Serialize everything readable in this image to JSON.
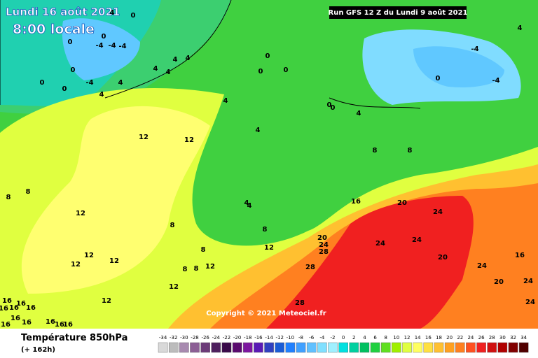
{
  "header": {
    "date": "Lundi 16 août 2021",
    "time": "8:00 locale",
    "run": "Run GFS 12 Z du Lundi 9 août 2021",
    "copyright": "Copyright © 2021 Meteociel.fr"
  },
  "footer": {
    "variable": "Température 850hPa",
    "lead": "(+ 162h)"
  },
  "legend": {
    "ticks": [
      -34,
      -32,
      -30,
      -28,
      -26,
      -24,
      -22,
      -20,
      -18,
      -16,
      -14,
      -12,
      -10,
      -8,
      -6,
      -4,
      -2,
      0,
      2,
      4,
      6,
      8,
      10,
      12,
      14,
      16,
      18,
      20,
      22,
      24,
      26,
      28,
      30,
      32,
      34
    ],
    "colors": [
      "#d9d9d9",
      "#bcbcbc",
      "#a88ab0",
      "#8c5f95",
      "#6c3b78",
      "#4e1f5e",
      "#3a0a4a",
      "#5a0a6e",
      "#7d16a0",
      "#5a1ab5",
      "#3040c0",
      "#1a5cd6",
      "#2080ff",
      "#40a0ff",
      "#60c0ff",
      "#80e0ff",
      "#a0f0ff",
      "#00e0e0",
      "#00d0a0",
      "#00c060",
      "#20d040",
      "#60e020",
      "#a0f000",
      "#e0ff40",
      "#ffff60",
      "#ffe040",
      "#ffc030",
      "#ffa020",
      "#ff8020",
      "#ff5020",
      "#f02020",
      "#d01010",
      "#b00000",
      "#800000",
      "#500000"
    ]
  },
  "map_labels": [
    4,
    0,
    0,
    -4,
    -4,
    -4,
    0,
    0,
    0,
    0,
    -4,
    4,
    4,
    4,
    4,
    4,
    4,
    4,
    0,
    0,
    0,
    0,
    0,
    4,
    4,
    -4,
    -4,
    4,
    0,
    12,
    12,
    8,
    8,
    8,
    8,
    4,
    4,
    12,
    8,
    8,
    8,
    12,
    16,
    20,
    24,
    20,
    24,
    28,
    24,
    24,
    12,
    12,
    12,
    8,
    8,
    12,
    28,
    20,
    16,
    24,
    20,
    24,
    12,
    12,
    28,
    24,
    16,
    16,
    16,
    16,
    16,
    16,
    16,
    16,
    16,
    16,
    16
  ]
}
